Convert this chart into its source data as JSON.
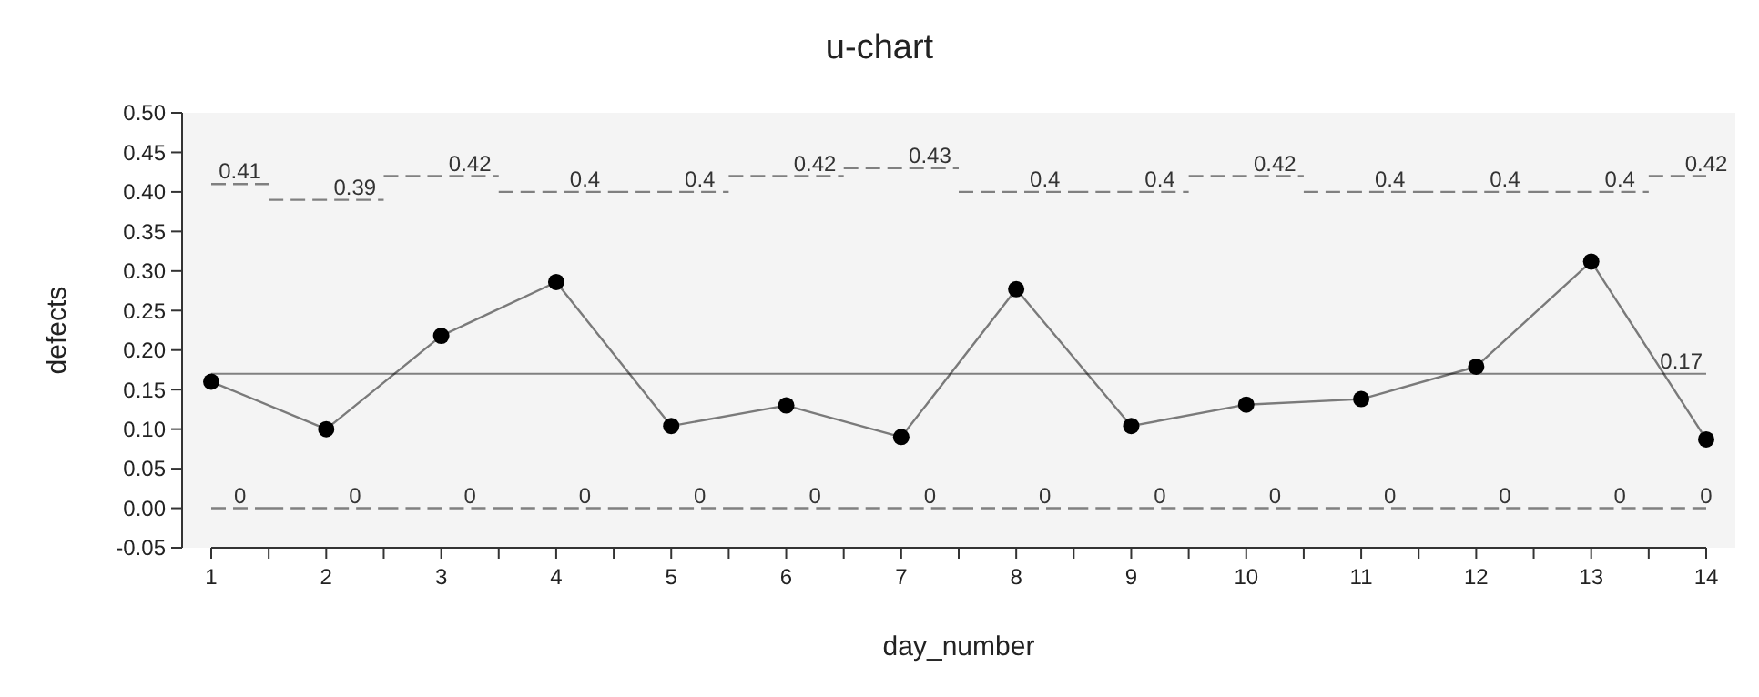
{
  "chart_data": {
    "type": "line",
    "title": "u-chart",
    "xlabel": "day_number",
    "ylabel": "defects",
    "x": [
      1,
      2,
      3,
      4,
      5,
      6,
      7,
      8,
      9,
      10,
      11,
      12,
      13,
      14
    ],
    "series": [
      {
        "color": "#000000",
        "marker": "circle",
        "line_style": "solid",
        "values": [
          0.16,
          0.1,
          0.218,
          0.286,
          0.104,
          0.13,
          0.09,
          0.277,
          0.104,
          0.131,
          0.138,
          0.179,
          0.312,
          0.087
        ]
      },
      {
        "type": "step",
        "color": "#808080",
        "line_style": "dashed",
        "values": [
          0.41,
          0.39,
          0.42,
          0.4,
          0.4,
          0.42,
          0.43,
          0.4,
          0.4,
          0.42,
          0.4,
          0.4,
          0.4,
          0.42
        ],
        "value_labels": [
          "0.41",
          "0.39",
          "0.42",
          "0.4",
          "0.4",
          "0.42",
          "0.43",
          "0.4",
          "0.4",
          "0.42",
          "0.4",
          "0.4",
          "0.4",
          "0.42"
        ]
      },
      {
        "type": "step",
        "color": "#808080",
        "line_style": "dashed",
        "values": [
          0,
          0,
          0,
          0,
          0,
          0,
          0,
          0,
          0,
          0,
          0,
          0,
          0,
          0
        ],
        "value_labels": [
          "0",
          "0",
          "0",
          "0",
          "0",
          "0",
          "0",
          "0",
          "0",
          "0",
          "0",
          "0",
          "0",
          "0"
        ]
      }
    ],
    "ref_lines": [
      {
        "axis": "y",
        "value": 0.17,
        "label": "0.17",
        "color": "#808080"
      }
    ],
    "xlim": [
      1,
      14
    ],
    "xticks": [
      1,
      {
        "value": 1.5,
        "label": null
      },
      2,
      {
        "value": 2.5,
        "label": null
      },
      3,
      {
        "value": 3.5,
        "label": null
      },
      4,
      {
        "value": 4.5,
        "label": null
      },
      5,
      {
        "value": 5.5,
        "label": null
      },
      6,
      {
        "value": 6.5,
        "label": null
      },
      7,
      {
        "value": 7.5,
        "label": null
      },
      8,
      {
        "value": 8.5,
        "label": null
      },
      9,
      {
        "value": 9.5,
        "label": null
      },
      10,
      {
        "value": 10.5,
        "label": null
      },
      11,
      {
        "value": 11.5,
        "label": null
      },
      12,
      {
        "value": 12.5,
        "label": null
      },
      13,
      {
        "value": 13.5,
        "label": null
      },
      14
    ],
    "ylim": [
      -0.05,
      0.5
    ],
    "yticks": [
      {
        "value": -0.05,
        "label": "-0.05"
      },
      {
        "value": 0,
        "label": "0.00"
      },
      {
        "value": 0.05,
        "label": "0.05"
      },
      {
        "value": 0.1,
        "label": "0.10"
      },
      {
        "value": 0.15,
        "label": "0.15"
      },
      {
        "value": 0.2,
        "label": "0.20"
      },
      {
        "value": 0.25,
        "label": "0.25"
      },
      {
        "value": 0.3,
        "label": "0.30"
      },
      {
        "value": 0.35,
        "label": "0.35"
      },
      {
        "value": 0.4,
        "label": "0.40"
      },
      {
        "value": 0.45,
        "label": "0.45"
      },
      {
        "value": 0.5,
        "label": "0.50"
      }
    ],
    "grid": false
  }
}
